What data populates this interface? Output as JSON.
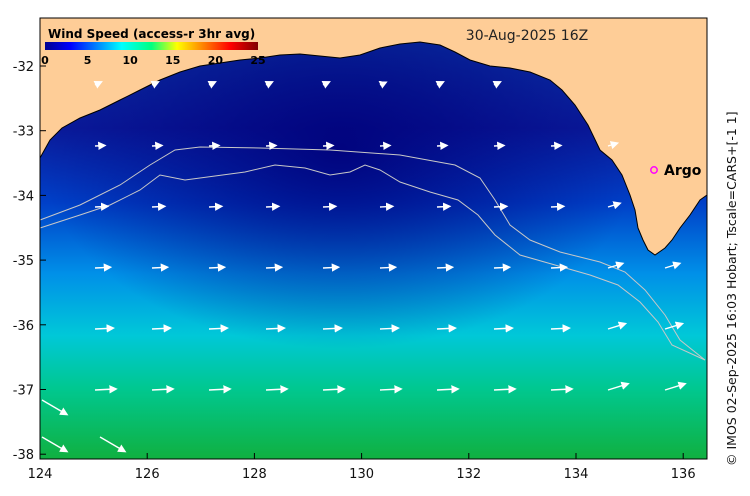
{
  "map": {
    "date_label": "30-Aug-2025 16Z",
    "argo_label": "Argo",
    "credit": "© IMOS 02-Sep-2025 16:03 Hobart; Tscale=CARS+[-1 1]",
    "colors": {
      "land": "#fecd97",
      "argo_marker": "#ff00ff",
      "contour": "#c8c8c8",
      "arrow": "#ffffff"
    }
  },
  "colorbar": {
    "title": "Wind Speed (access-r 3hr avg)",
    "ticks": [
      "0",
      "5",
      "10",
      "15",
      "20",
      "25"
    ],
    "min": 0,
    "max": 25,
    "colormap": "jet"
  },
  "axes": {
    "x_ticks": [
      "124",
      "126",
      "128",
      "130",
      "132",
      "134",
      "136"
    ],
    "y_ticks": [
      "-32",
      "-33",
      "-34",
      "-35",
      "-36",
      "-37",
      "-38"
    ]
  }
}
